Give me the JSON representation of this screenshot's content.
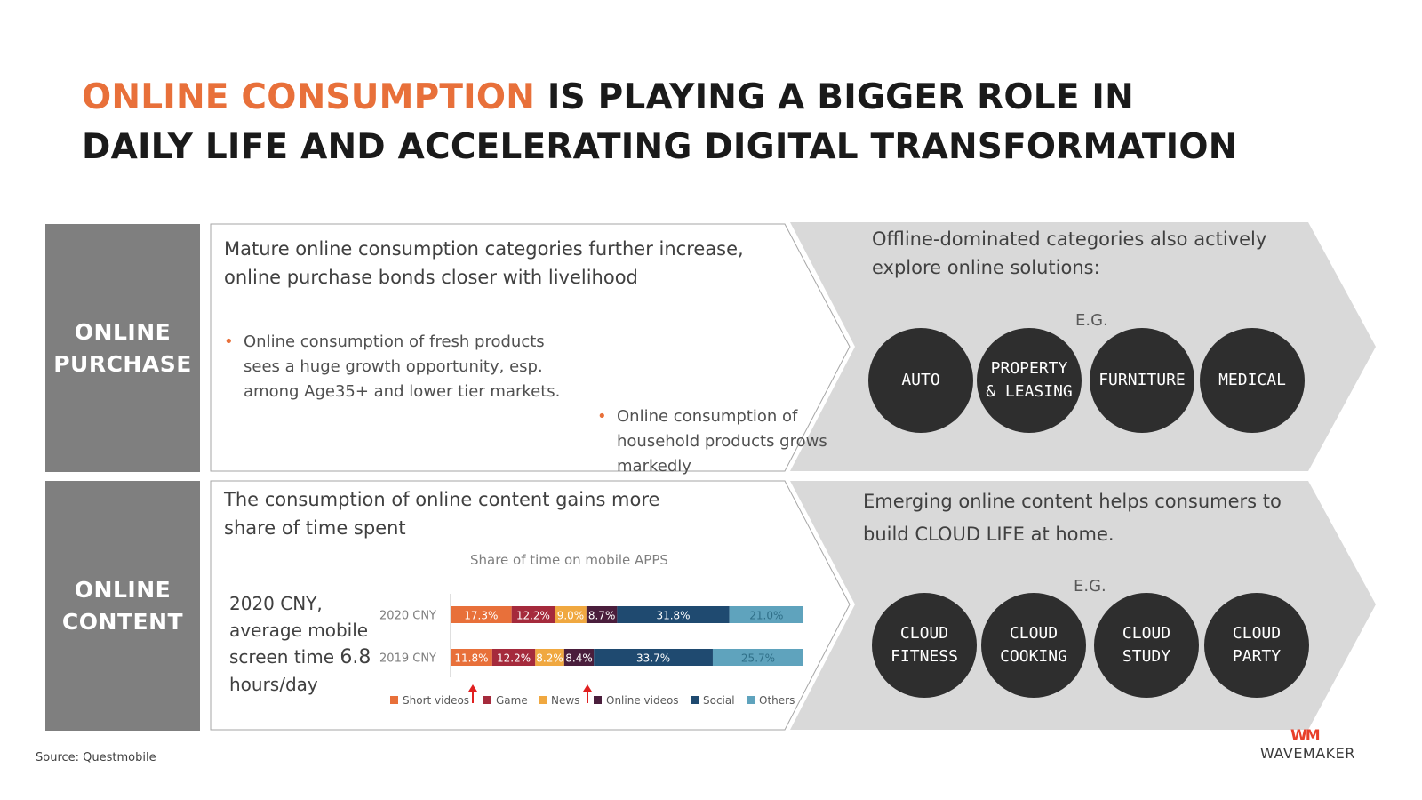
{
  "title": {
    "highlight": "ONLINE CONSUMPTION",
    "rest_line1": " IS PLAYING A BIGGER ROLE IN",
    "line2": "DAILY LIFE AND ACCELERATING DIGITAL TRANSFORMATION"
  },
  "purchase": {
    "side_label_1": "ONLINE",
    "side_label_2": "PURCHASE",
    "heading": "Mature online consumption categories further increase, online purchase bonds closer with livelihood",
    "bullets": [
      "Online consumption of fresh products sees a huge growth opportunity, esp. among Age35+ and lower tier markets.",
      "Online consumption of household products grows markedly"
    ],
    "right_heading": "Offline-dominated categories also actively explore online solutions:",
    "eg": "E.G.",
    "circles": [
      {
        "line1": "AUTO",
        "line2": ""
      },
      {
        "line1": "PROPERTY",
        "line2": "& LEASING"
      },
      {
        "line1": "FURNITURE",
        "line2": ""
      },
      {
        "line1": "MEDICAL",
        "line2": ""
      }
    ]
  },
  "content": {
    "side_label_1": "ONLINE",
    "side_label_2": "CONTENT",
    "heading": "The consumption of online content gains more share of time spent",
    "stat_prefix": "2020 CNY, average mobile screen time ",
    "stat_value": "6.8",
    "stat_suffix": " hours/day",
    "right_heading": "Emerging online content helps consumers to build CLOUD LIFE at home.",
    "eg": "E.G.",
    "circles": [
      {
        "line1": "CLOUD",
        "line2": "FITNESS"
      },
      {
        "line1": "CLOUD",
        "line2": "COOKING"
      },
      {
        "line1": "CLOUD",
        "line2": "STUDY"
      },
      {
        "line1": "CLOUD",
        "line2": "PARTY"
      }
    ]
  },
  "chart_data": {
    "type": "bar",
    "orientation": "horizontal",
    "stacked": true,
    "percent_stacked": true,
    "title": "Share of time on mobile APPS",
    "categories": [
      "2020 CNY",
      "2019 CNY"
    ],
    "series": [
      {
        "name": "Short videos",
        "values": [
          17.3,
          11.8
        ],
        "labels": [
          "17.3%",
          "11.8%"
        ],
        "color": "#e8703a",
        "label_color": "#ffffff"
      },
      {
        "name": "Game",
        "values": [
          12.2,
          12.2
        ],
        "labels": [
          "12.2%",
          "12.2%"
        ],
        "color": "#a52a3c",
        "label_color": "#ffffff"
      },
      {
        "name": "News",
        "values": [
          9.0,
          8.2
        ],
        "labels": [
          "9.0%",
          "8.2%"
        ],
        "color": "#f0a840",
        "label_color": "#ffffff"
      },
      {
        "name": "Online videos",
        "values": [
          8.7,
          8.4
        ],
        "labels": [
          "8.7%",
          "8.4%"
        ],
        "color": "#4a1e3c",
        "label_color": "#ffffff"
      },
      {
        "name": "Social",
        "values": [
          31.8,
          33.7
        ],
        "labels": [
          "31.8%",
          "33.7%"
        ],
        "color": "#1f4a70",
        "label_color": "#ffffff"
      },
      {
        "name": "Others",
        "values": [
          21.0,
          25.7
        ],
        "labels": [
          "21.0%",
          "25.7%"
        ],
        "color": "#5fa3bd",
        "label_color": "#2f6f88"
      }
    ],
    "legend_position": "bottom",
    "increase_markers": [
      "Short videos",
      "Online videos"
    ],
    "marker_color": "#e02020"
  },
  "source": "Source: Questmobile",
  "logo": {
    "mark": "WM",
    "text": "WAVEMAKER"
  }
}
